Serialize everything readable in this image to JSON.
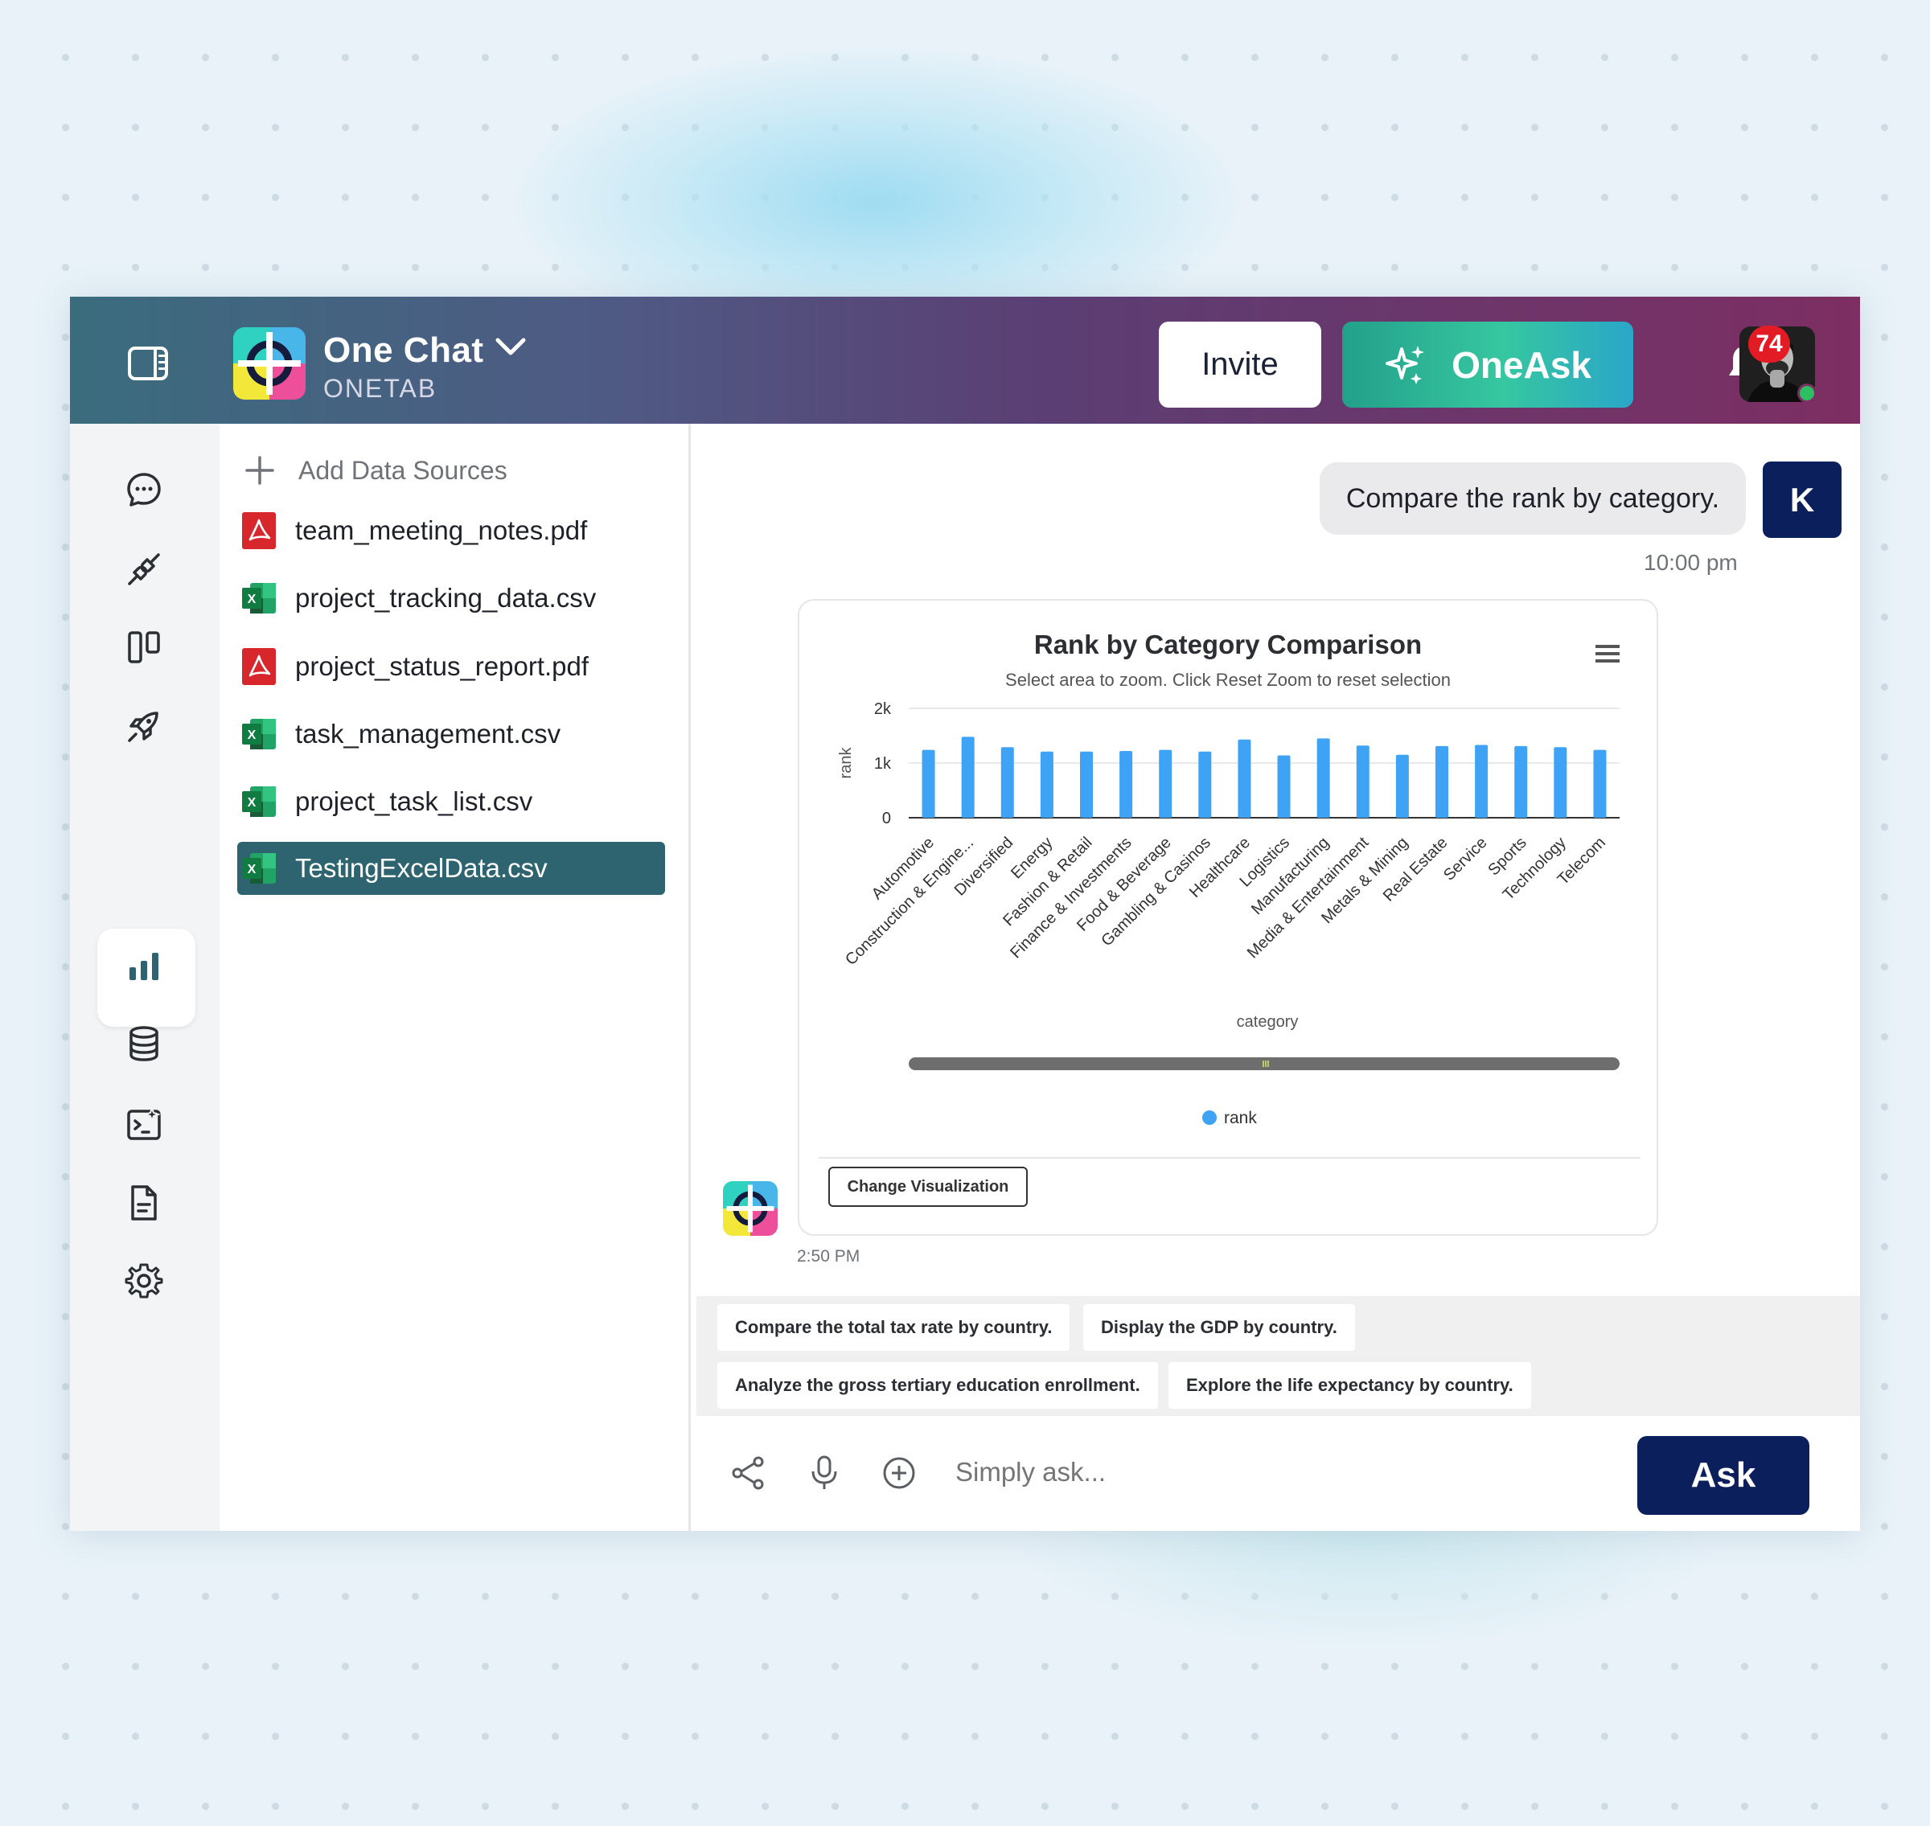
{
  "header": {
    "app_title": "One Chat",
    "app_subtitle": "ONETAB",
    "invite_label": "Invite",
    "oneask_label": "OneAsk",
    "notification_count": "74"
  },
  "files": {
    "add_label": "Add Data Sources",
    "items": [
      {
        "name": "team_meeting_notes.pdf",
        "type": "pdf"
      },
      {
        "name": "project_tracking_data.csv",
        "type": "csv"
      },
      {
        "name": "project_status_report.pdf",
        "type": "pdf"
      },
      {
        "name": "task_management.csv",
        "type": "csv"
      },
      {
        "name": "project_task_list.csv",
        "type": "csv"
      },
      {
        "name": "TestingExcelData.csv",
        "type": "csv",
        "selected": true
      }
    ]
  },
  "rail": {
    "icons": [
      "chat-icon",
      "integrations-icon",
      "board-icon",
      "rocket-icon",
      "analytics-icon",
      "database-icon",
      "ai-terminal-icon",
      "document-icon",
      "settings-icon"
    ],
    "active": "analytics-icon"
  },
  "conversation": {
    "user_message": "Compare the rank by category.",
    "user_initial": "K",
    "user_time": "10:00 pm",
    "bot_time": "2:50 PM",
    "change_visualization_label": "Change Visualization"
  },
  "chart_data": {
    "type": "bar",
    "title": "Rank by Category Comparison",
    "subtitle": "Select area to zoom. Click Reset Zoom to reset selection",
    "xlabel": "category",
    "ylabel": "rank",
    "ylim": [
      0,
      2000
    ],
    "yticks": [
      "0",
      "1k",
      "2k"
    ],
    "categories": [
      "Automotive",
      "Construction & Engine...",
      "Diversified",
      "Energy",
      "Fashion & Retail",
      "Finance & Investments",
      "Food & Beverage",
      "Gambling & Casinos",
      "Healthcare",
      "Logistics",
      "Manufacturing",
      "Media & Entertainment",
      "Metals & Mining",
      "Real Estate",
      "Service",
      "Sports",
      "Technology",
      "Telecom"
    ],
    "series": [
      {
        "name": "rank",
        "color": "#3fa3f5",
        "values": [
          1240,
          1480,
          1290,
          1210,
          1210,
          1220,
          1240,
          1210,
          1430,
          1140,
          1450,
          1320,
          1150,
          1310,
          1330,
          1310,
          1290,
          1240
        ]
      }
    ],
    "legend": "bottom-center",
    "grid": true
  },
  "suggestions": [
    "Compare the total tax rate by country.",
    "Display the GDP by country.",
    "Analyze the gross tertiary education enrollment.",
    "Explore the life expectancy by country."
  ],
  "input": {
    "placeholder": "Simply ask...",
    "ask_label": "Ask"
  },
  "colors": {
    "accent_navy": "#0a1f5c",
    "selected_file": "#2e6470",
    "bar": "#3fa3f5"
  }
}
